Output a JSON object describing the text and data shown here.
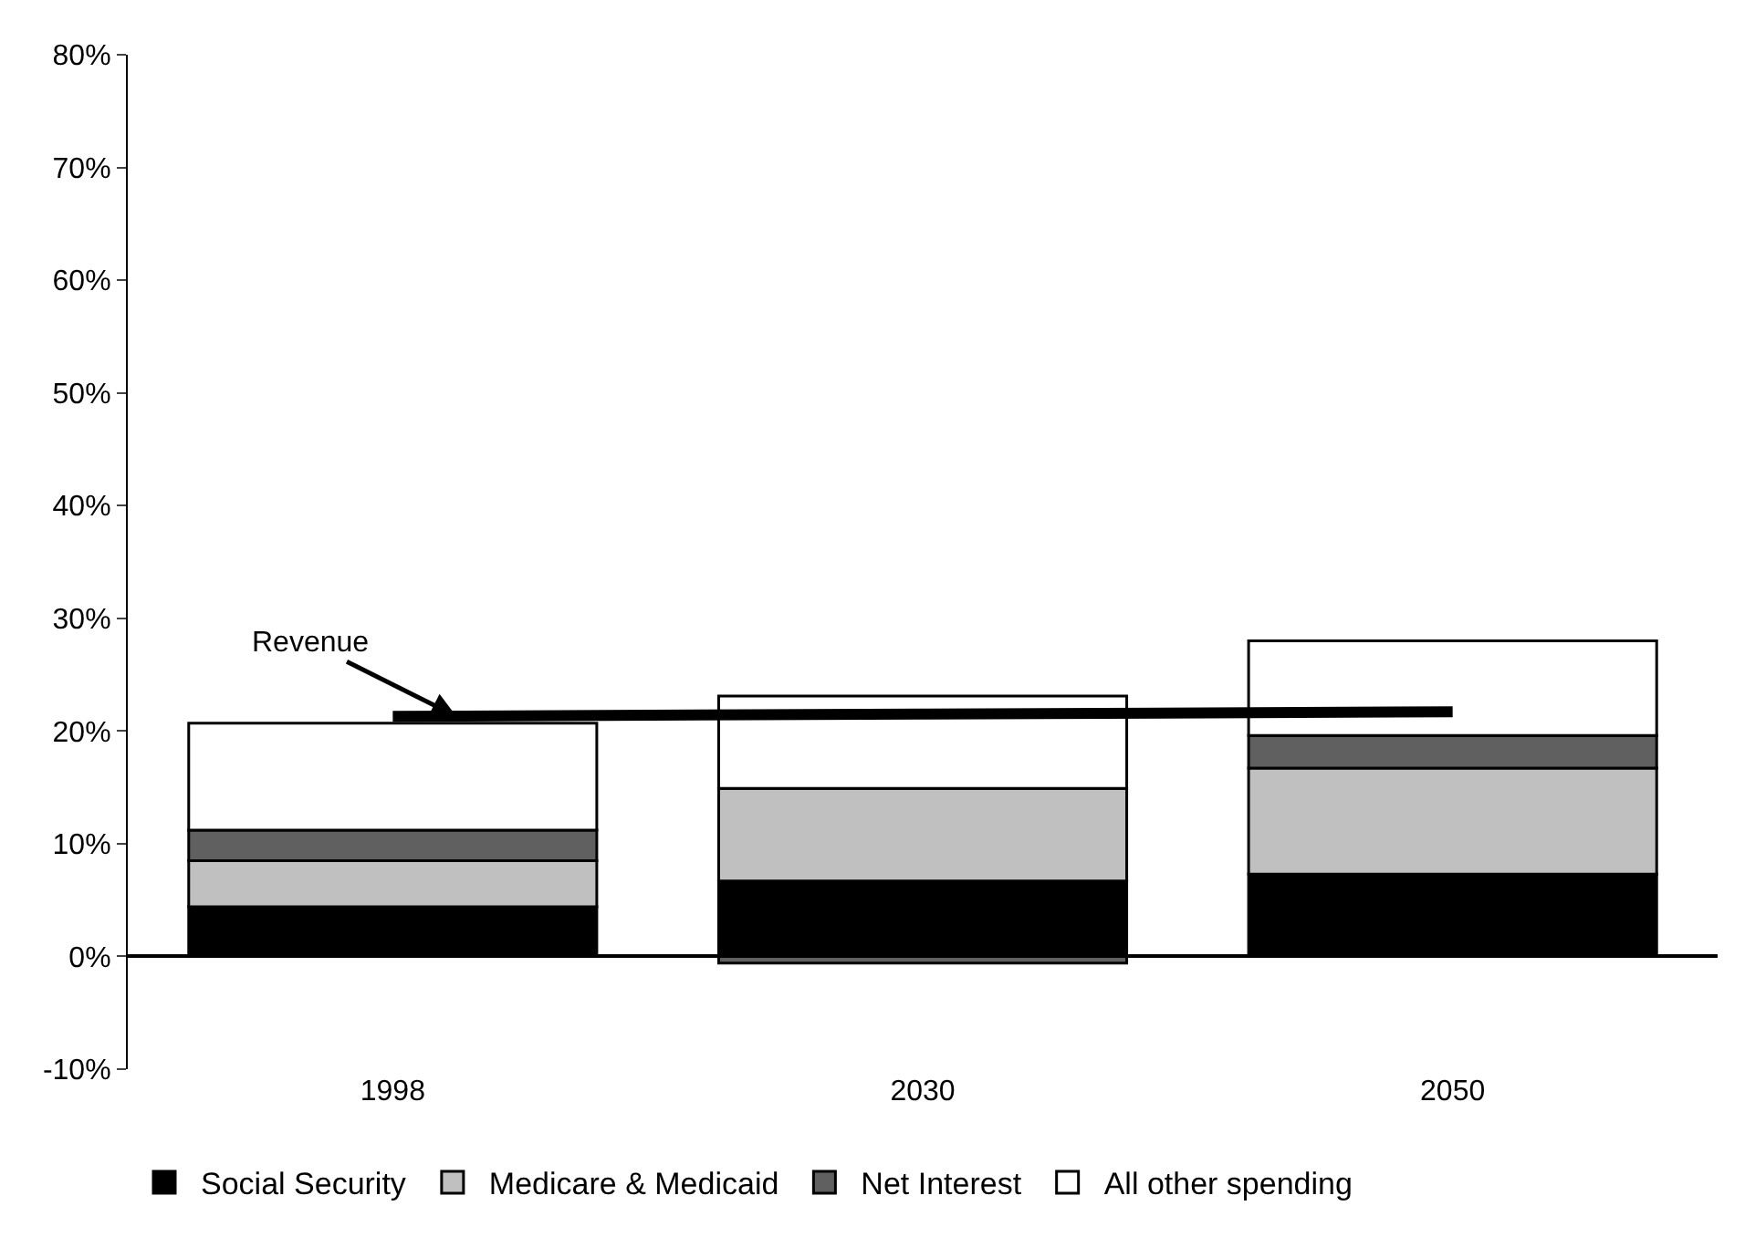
{
  "chart_data": {
    "type": "bar",
    "stacked": true,
    "categories": [
      "1998",
      "2030",
      "2050"
    ],
    "series": [
      {
        "name": "Social Security",
        "color": "#000000",
        "values": [
          4.4,
          6.7,
          7.3
        ]
      },
      {
        "name": "Medicare & Medicaid",
        "color": "#c0c0c0",
        "values": [
          4.1,
          8.2,
          9.4
        ]
      },
      {
        "name": "Net Interest",
        "color": "#606060",
        "values": [
          2.7,
          -0.6,
          2.9
        ]
      },
      {
        "name": "All other spending",
        "color": "#ffffff",
        "values": [
          9.5,
          8.2,
          8.4
        ]
      },
      {
        "type": "line",
        "color": "#000000",
        "values": [
          21.3,
          21.5,
          21.7
        ]
      }
    ],
    "ylim": [
      -10,
      80
    ],
    "yticks": [
      {
        "value": -10,
        "label": "-10%"
      },
      {
        "value": 0,
        "label": "0%"
      },
      {
        "value": 10,
        "label": "10%"
      },
      {
        "value": 20,
        "label": "20%"
      },
      {
        "value": 30,
        "label": "30%"
      },
      {
        "value": 40,
        "label": "40%"
      },
      {
        "value": 50,
        "label": "50%"
      },
      {
        "value": 60,
        "label": "60%"
      },
      {
        "value": 70,
        "label": "70%"
      },
      {
        "value": 80,
        "label": "80%"
      }
    ],
    "annotations": [
      {
        "text": "Revenue",
        "x": "1998",
        "y": 21.3
      }
    ],
    "legend": "bottom"
  }
}
